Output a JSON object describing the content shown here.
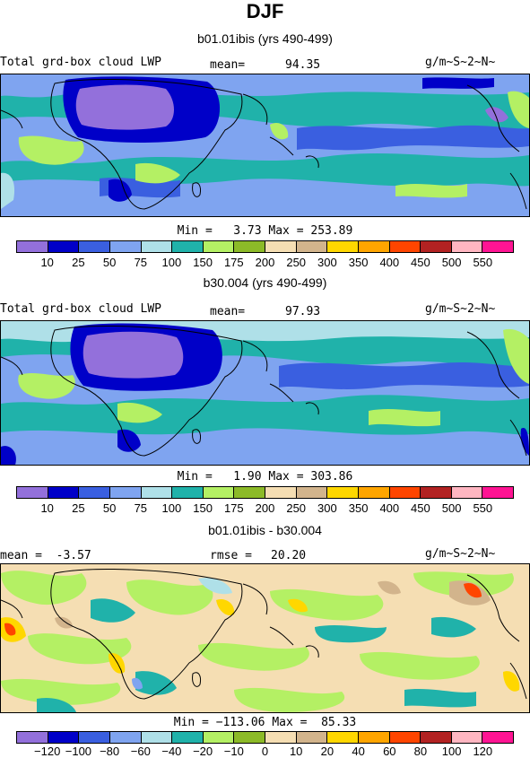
{
  "title": "DJF",
  "panels": [
    {
      "subtitle": "b01.01ibis (yrs 490-499)",
      "left_label": "Total grd-box cloud LWP",
      "stat_label": "mean=",
      "stat_value": "94.35",
      "units": "g/m~S~2~N~",
      "minmax": "Min =   3.73 Max = 253.89",
      "colorbar_ticks": [
        "10",
        "25",
        "50",
        "75",
        "100",
        "150",
        "175",
        "200",
        "250",
        "300",
        "350",
        "400",
        "450",
        "500",
        "550"
      ]
    },
    {
      "subtitle": "b30.004 (yrs 490-499)",
      "left_label": "Total grd-box cloud LWP",
      "stat_label": "mean=",
      "stat_value": "97.93",
      "units": "g/m~S~2~N~",
      "minmax": "Min =   1.90 Max = 303.86",
      "colorbar_ticks": [
        "10",
        "25",
        "50",
        "75",
        "100",
        "150",
        "175",
        "200",
        "250",
        "300",
        "350",
        "400",
        "450",
        "500",
        "550"
      ]
    },
    {
      "subtitle": "b01.01ibis - b30.004",
      "left_label": "mean =  -3.57",
      "stat_label": "rmse =",
      "stat_value": "20.20",
      "units": "g/m~S~2~N~",
      "minmax": "Min = −113.06 Max =  85.33",
      "colorbar_ticks": [
        "−120",
        "−100",
        "−80",
        "−60",
        "−40",
        "−20",
        "−10",
        "0",
        "10",
        "20",
        "40",
        "60",
        "80",
        "100",
        "120"
      ]
    }
  ],
  "colors": {
    "palette": [
      "#9370db",
      "#0000c8",
      "#3a5fe0",
      "#7fa4f0",
      "#afe0e8",
      "#20b2aa",
      "#b4f064",
      "#8cba28",
      "#f5deb3",
      "#d2b48c",
      "#ffd700",
      "#ffa500",
      "#ff4500",
      "#b22222",
      "#ffb6c1",
      "#ff1493"
    ]
  }
}
